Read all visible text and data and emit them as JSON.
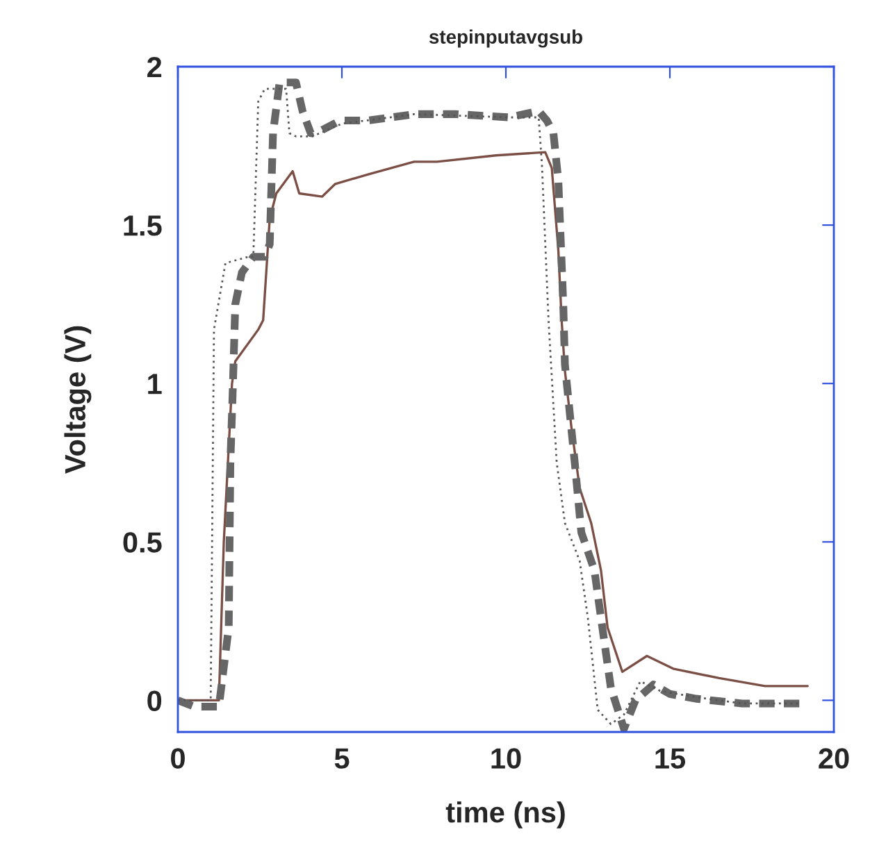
{
  "chart_data": {
    "type": "line",
    "title": "stepinputavgsub",
    "xlabel": "time (ns)",
    "ylabel": "Voltage (V)",
    "xlim": [
      0,
      20
    ],
    "ylim": [
      -0.1,
      2
    ],
    "xticks": [
      0,
      5,
      10,
      15,
      20
    ],
    "yticks": [
      0,
      0.5,
      1,
      1.5,
      2
    ],
    "grid": false,
    "series": [
      {
        "color": "#7b4f45",
        "line_style": "solid",
        "x": [
          0,
          0.5,
          1.25,
          1.4,
          1.55,
          1.65,
          1.75,
          2.45,
          2.6,
          2.8,
          3.0,
          3.5,
          3.7,
          4.4,
          4.8,
          5.8,
          7.2,
          7.9,
          9.7,
          11.2,
          11.4,
          11.6,
          11.7,
          11.8,
          12.0,
          12.25,
          12.6,
          12.9,
          13.1,
          13.55,
          14.3,
          15.1,
          16.5,
          17.9,
          19.2
        ],
        "values": [
          0,
          0,
          0,
          0.5,
          0.8,
          1.0,
          1.07,
          1.17,
          1.2,
          1.52,
          1.6,
          1.67,
          1.6,
          1.59,
          1.63,
          1.66,
          1.7,
          1.7,
          1.72,
          1.73,
          1.68,
          1.42,
          1.2,
          1.04,
          0.86,
          0.67,
          0.56,
          0.41,
          0.23,
          0.09,
          0.14,
          0.1,
          0.07,
          0.045,
          0.045
        ]
      },
      {
        "color": "#666666",
        "line_style": "dashed",
        "x": [
          0,
          0.5,
          1.25,
          1.55,
          1.6,
          1.67,
          1.75,
          1.95,
          2.3,
          2.65,
          2.8,
          2.9,
          3.1,
          3.6,
          3.8,
          4.05,
          4.4,
          4.95,
          5.8,
          7.2,
          8.5,
          10.1,
          11.0,
          11.25,
          11.45,
          11.6,
          11.75,
          11.8,
          12.1,
          12.3,
          12.7,
          12.9,
          13.2,
          13.6,
          13.95,
          14.5,
          15.0,
          15.8,
          17.2,
          19.0
        ],
        "values": [
          0,
          -0.02,
          -0.02,
          0.23,
          0.75,
          0.97,
          1.25,
          1.35,
          1.4,
          1.4,
          1.44,
          1.79,
          1.95,
          1.95,
          1.86,
          1.79,
          1.8,
          1.83,
          1.83,
          1.85,
          1.85,
          1.84,
          1.86,
          1.83,
          1.79,
          1.64,
          1.25,
          1.06,
          0.75,
          0.53,
          0.41,
          0.26,
          0.04,
          -0.09,
          0,
          0.05,
          0.02,
          0.005,
          -0.01,
          -0.01
        ]
      },
      {
        "color": "#555555",
        "line_style": "dotted",
        "x": [
          0,
          1.0,
          1.1,
          1.45,
          2.15,
          2.3,
          2.45,
          2.65,
          3.3,
          3.4,
          3.6,
          4.1,
          5.0,
          7.2,
          10.1,
          11.0,
          11.1,
          11.3,
          11.55,
          11.8,
          12.25,
          12.5,
          12.8,
          13.2,
          13.6,
          14.1,
          14.7,
          15.8,
          17.2,
          19.0
        ],
        "values": [
          0,
          0,
          1.17,
          1.38,
          1.4,
          1.4,
          1.89,
          1.93,
          1.93,
          1.79,
          1.78,
          1.78,
          1.82,
          1.85,
          1.84,
          1.84,
          1.69,
          1.2,
          0.75,
          0.56,
          0.44,
          0.26,
          -0.03,
          -0.075,
          -0.045,
          0.06,
          0.03,
          0.01,
          -0.01,
          -0.01
        ]
      }
    ]
  }
}
